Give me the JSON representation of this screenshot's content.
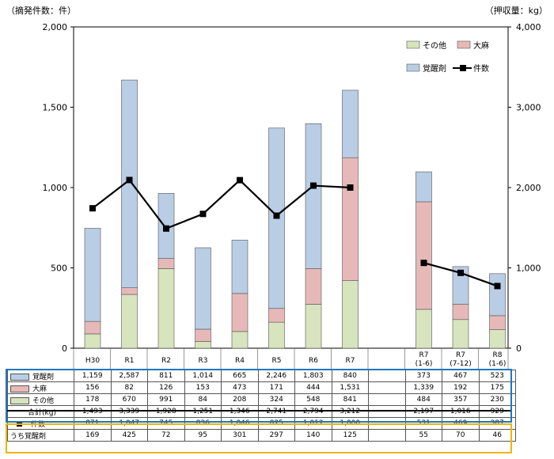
{
  "chart_data": {
    "type": "bar",
    "left_axis_label": "（摘発件数：件）",
    "right_axis_label": "（押収量：kg）",
    "y_left": {
      "min": 0,
      "max": 2000,
      "ticks": [
        "0",
        "500",
        "1,000",
        "1,500",
        "2,000"
      ]
    },
    "y_right": {
      "min": 0,
      "max": 4000,
      "ticks": [
        "0",
        "1,000",
        "2,000",
        "3,000",
        "4,000"
      ]
    },
    "categories": [
      {
        "label": "H30",
        "sub": ""
      },
      {
        "label": "R1",
        "sub": ""
      },
      {
        "label": "R2",
        "sub": ""
      },
      {
        "label": "R3",
        "sub": ""
      },
      {
        "label": "R4",
        "sub": ""
      },
      {
        "label": "R5",
        "sub": ""
      },
      {
        "label": "R6",
        "sub": ""
      },
      {
        "label": "R7",
        "sub": ""
      },
      {
        "label": "",
        "sub": ""
      },
      {
        "label": "R7",
        "sub": "(1-6)"
      },
      {
        "label": "R7",
        "sub": "(7-12)"
      },
      {
        "label": "R8",
        "sub": "(1-6)"
      }
    ],
    "stack_series": [
      {
        "name": "その他",
        "color": "#d7e4bd",
        "values": [
          178,
          670,
          991,
          84,
          208,
          324,
          548,
          841,
          null,
          484,
          357,
          230
        ]
      },
      {
        "name": "大麻",
        "color": "#e6b9b8",
        "values": [
          156,
          82,
          126,
          153,
          473,
          171,
          444,
          1531,
          null,
          1339,
          192,
          175
        ]
      },
      {
        "name": "覚醒剤",
        "color": "#b9cde5",
        "values": [
          1159,
          2587,
          811,
          1014,
          665,
          2246,
          1803,
          840,
          null,
          373,
          467,
          523
        ]
      }
    ],
    "line_series": {
      "name": "件数",
      "color": "#000000",
      "values": [
        871,
        1047,
        745,
        836,
        1046,
        825,
        1012,
        1000,
        null,
        531,
        469,
        387
      ]
    },
    "legend": [
      {
        "name": "その他",
        "color": "#d7e4bd",
        "kind": "box"
      },
      {
        "name": "大麻",
        "color": "#e6b9b8",
        "kind": "box"
      },
      {
        "name": "覚醒剤",
        "color": "#b9cde5",
        "kind": "box"
      },
      {
        "name": "件数",
        "color": "#000000",
        "kind": "line"
      }
    ],
    "legend_position": "top-right",
    "grid": false
  },
  "table": {
    "rows": [
      {
        "label": "覚醒剤",
        "swatch": "#b9cde5",
        "kind": "box",
        "cells": [
          "1,159",
          "2,587",
          "811",
          "1,014",
          "665",
          "2,246",
          "1,803",
          "840",
          "",
          "373",
          "467",
          "523"
        ]
      },
      {
        "label": "大麻",
        "swatch": "#e6b9b8",
        "kind": "box",
        "cells": [
          "156",
          "82",
          "126",
          "153",
          "473",
          "171",
          "444",
          "1,531",
          "",
          "1,339",
          "192",
          "175"
        ]
      },
      {
        "label": "その他",
        "swatch": "#d7e4bd",
        "kind": "box",
        "cells": [
          "178",
          "670",
          "991",
          "84",
          "208",
          "324",
          "548",
          "841",
          "",
          "484",
          "357",
          "230"
        ]
      },
      {
        "label": "合計(kg)",
        "swatch": "",
        "kind": "sum",
        "cells": [
          "1,493",
          "3,339",
          "1,928",
          "1,251",
          "1,346",
          "2,741",
          "2,794",
          "3,212",
          "",
          "2,197",
          "1,016",
          "929"
        ]
      },
      {
        "label": "件数",
        "swatch": "#000000",
        "kind": "line",
        "cells": [
          "871",
          "1,047",
          "745",
          "836",
          "1,046",
          "825",
          "1,012",
          "1,000",
          "",
          "531",
          "469",
          "387"
        ]
      },
      {
        "label": "うち覚醒剤",
        "swatch": "",
        "kind": "plain",
        "cells": [
          "169",
          "425",
          "72",
          "95",
          "301",
          "297",
          "140",
          "125",
          "",
          "55",
          "70",
          "46"
        ]
      }
    ]
  }
}
